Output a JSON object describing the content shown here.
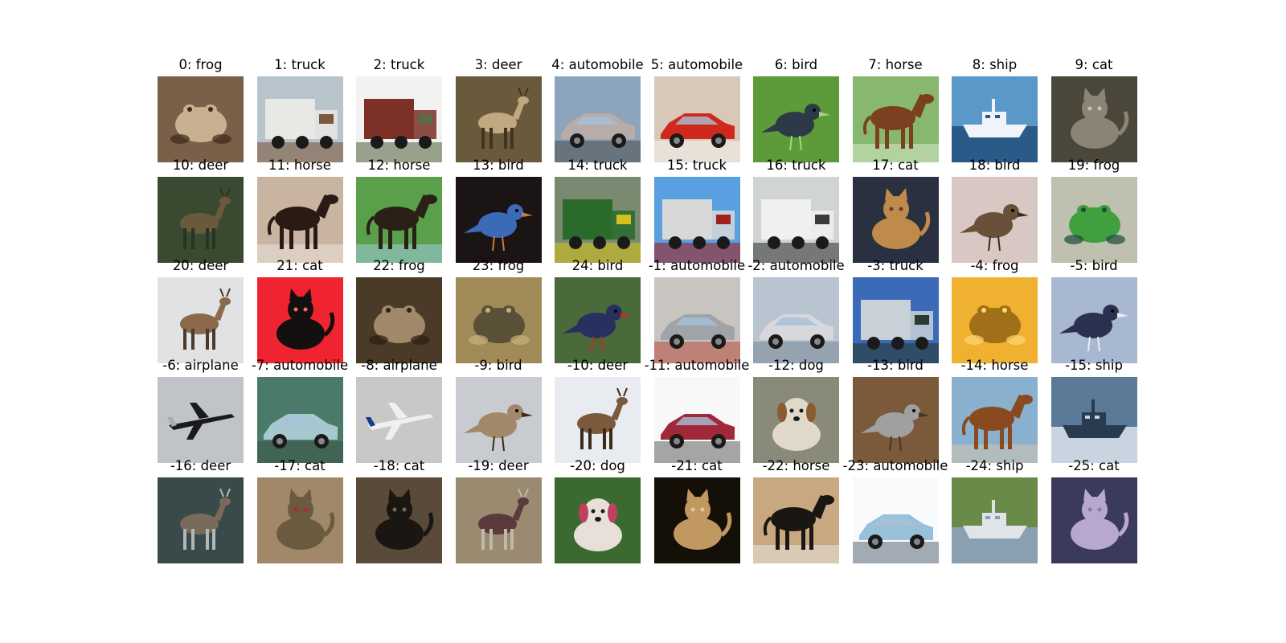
{
  "figure": {
    "cells": [
      {
        "title": "0: frog",
        "subject": "frog",
        "colors": {
          "bg": "#7a6048",
          "fg": "#c8b090",
          "accent": "#3c2a1a"
        }
      },
      {
        "title": "1: truck",
        "subject": "truck",
        "colors": {
          "bg": "#b8c4cc",
          "fg": "#e8e8e4",
          "accent": "#7a5a3a"
        }
      },
      {
        "title": "2: truck",
        "subject": "truck",
        "colors": {
          "bg": "#f2f2f0",
          "fg": "#7c3026",
          "accent": "#5a6a4a"
        }
      },
      {
        "title": "3: deer",
        "subject": "deer",
        "colors": {
          "bg": "#6a5a3c",
          "fg": "#c0a880",
          "accent": "#40341e"
        }
      },
      {
        "title": "4: automobile",
        "subject": "automobile",
        "colors": {
          "bg": "#8ca4bc",
          "fg": "#b8aca8",
          "accent": "#3c3a30"
        }
      },
      {
        "title": "5: automobile",
        "subject": "automobile",
        "colors": {
          "bg": "#d8c8b8",
          "fg": "#d0281c",
          "accent": "#ffffff"
        }
      },
      {
        "title": "6: bird",
        "subject": "bird",
        "colors": {
          "bg": "#5c9a3a",
          "fg": "#2c3a48",
          "accent": "#b0d080"
        }
      },
      {
        "title": "7: horse",
        "subject": "horse",
        "colors": {
          "bg": "#88b870",
          "fg": "#7a4020",
          "accent": "#e0ecd0"
        }
      },
      {
        "title": "8: ship",
        "subject": "ship",
        "colors": {
          "bg": "#5a98c8",
          "fg": "#f0f4f8",
          "accent": "#2a5a88"
        }
      },
      {
        "title": "9: cat",
        "subject": "cat",
        "colors": {
          "bg": "#4a463a",
          "fg": "#8a8474",
          "accent": "#c8c4b4"
        }
      },
      {
        "title": "10: deer",
        "subject": "deer",
        "colors": {
          "bg": "#3a4a30",
          "fg": "#6a5a3c",
          "accent": "#2a3220"
        }
      },
      {
        "title": "11: horse",
        "subject": "horse",
        "colors": {
          "bg": "#c8b4a0",
          "fg": "#2a1a14",
          "accent": "#f0e8e0"
        }
      },
      {
        "title": "12: horse",
        "subject": "horse",
        "colors": {
          "bg": "#5aa04a",
          "fg": "#2a2018",
          "accent": "#a8d0f0"
        }
      },
      {
        "title": "13: bird",
        "subject": "bird",
        "colors": {
          "bg": "#1a1414",
          "fg": "#3a6ab8",
          "accent": "#c87a3a"
        }
      },
      {
        "title": "14: truck",
        "subject": "truck",
        "colors": {
          "bg": "#7a8a70",
          "fg": "#2a6a2a",
          "accent": "#d0c020"
        }
      },
      {
        "title": "15: truck",
        "subject": "truck",
        "colors": {
          "bg": "#5aa0e0",
          "fg": "#d8d8d8",
          "accent": "#a02020"
        }
      },
      {
        "title": "16: truck",
        "subject": "truck",
        "colors": {
          "bg": "#d0d4d4",
          "fg": "#f0f0f0",
          "accent": "#3a3a3a"
        }
      },
      {
        "title": "17: cat",
        "subject": "cat",
        "colors": {
          "bg": "#2a3040",
          "fg": "#c08a4a",
          "accent": "#5a4030"
        }
      },
      {
        "title": "18: bird",
        "subject": "bird",
        "colors": {
          "bg": "#d8c8c4",
          "fg": "#6a5038",
          "accent": "#3a2a1a"
        }
      },
      {
        "title": "19: frog",
        "subject": "frog",
        "colors": {
          "bg": "#c0c0b0",
          "fg": "#40a040",
          "accent": "#1a4a3a"
        }
      },
      {
        "title": "20: deer",
        "subject": "deer",
        "colors": {
          "bg": "#e0e2e4",
          "fg": "#8a6a4a",
          "accent": "#4a3a2a"
        }
      },
      {
        "title": "21: cat",
        "subject": "cat",
        "colors": {
          "bg": "#f02430",
          "fg": "#141010",
          "accent": "#ff6a70"
        }
      },
      {
        "title": "22: frog",
        "subject": "frog",
        "colors": {
          "bg": "#4a3a28",
          "fg": "#a08868",
          "accent": "#2a2014"
        }
      },
      {
        "title": "23: frog",
        "subject": "frog",
        "colors": {
          "bg": "#a08a58",
          "fg": "#5a5038",
          "accent": "#c8b078"
        }
      },
      {
        "title": "24: bird",
        "subject": "bird",
        "colors": {
          "bg": "#4a6a3a",
          "fg": "#283060",
          "accent": "#c03020"
        }
      },
      {
        "title": "-1: automobile",
        "subject": "automobile",
        "colors": {
          "bg": "#c8c4c0",
          "fg": "#a0a4a8",
          "accent": "#b03020"
        }
      },
      {
        "title": "-2: automobile",
        "subject": "automobile",
        "colors": {
          "bg": "#b8c4d0",
          "fg": "#d8d8dc",
          "accent": "#6a7a8a"
        }
      },
      {
        "title": "-3: truck",
        "subject": "truck",
        "colors": {
          "bg": "#3a6ab8",
          "fg": "#c8d0d8",
          "accent": "#2a3a30"
        }
      },
      {
        "title": "-4: frog",
        "subject": "frog",
        "colors": {
          "bg": "#f0b030",
          "fg": "#a07018",
          "accent": "#ffd870"
        }
      },
      {
        "title": "-5: bird",
        "subject": "bird",
        "colors": {
          "bg": "#a8b8d0",
          "fg": "#2a3050",
          "accent": "#e8ecf0"
        }
      },
      {
        "title": "-6: airplane",
        "subject": "airplane",
        "colors": {
          "bg": "#c0c4c8",
          "fg": "#1a1a1a",
          "accent": "#a8acb0"
        }
      },
      {
        "title": "-7: automobile",
        "subject": "automobile",
        "colors": {
          "bg": "#4a7a6a",
          "fg": "#a8c8d0",
          "accent": "#3a4a3a"
        }
      },
      {
        "title": "-8: airplane",
        "subject": "airplane",
        "colors": {
          "bg": "#c8c8c8",
          "fg": "#f0f0f0",
          "accent": "#1a3a8a"
        }
      },
      {
        "title": "-9: bird",
        "subject": "bird",
        "colors": {
          "bg": "#c8ccd0",
          "fg": "#a08868",
          "accent": "#3a2a1a"
        }
      },
      {
        "title": "-10: deer",
        "subject": "deer",
        "colors": {
          "bg": "#e8ecf0",
          "fg": "#7a5a3a",
          "accent": "#3a2a1a"
        }
      },
      {
        "title": "-11: automobile",
        "subject": "automobile",
        "colors": {
          "bg": "#f8f8f8",
          "fg": "#a02838",
          "accent": "#404040"
        }
      },
      {
        "title": "-12: dog",
        "subject": "dog",
        "colors": {
          "bg": "#8a8a7a",
          "fg": "#e0d8c8",
          "accent": "#8a5a30"
        }
      },
      {
        "title": "-13: bird",
        "subject": "bird",
        "colors": {
          "bg": "#7a5a3a",
          "fg": "#a0a0a0",
          "accent": "#4a3420"
        }
      },
      {
        "title": "-14: horse",
        "subject": "horse",
        "colors": {
          "bg": "#8ab0d0",
          "fg": "#8a4a20",
          "accent": "#d8c8a8"
        }
      },
      {
        "title": "-15: ship",
        "subject": "ship",
        "colors": {
          "bg": "#5a7a98",
          "fg": "#2a3a50",
          "accent": "#c8d4e0"
        }
      },
      {
        "title": "-16: deer",
        "subject": "deer",
        "colors": {
          "bg": "#3a4a4a",
          "fg": "#7a6a5a",
          "accent": "#b0b8b8"
        }
      },
      {
        "title": "-17: cat",
        "subject": "cat",
        "colors": {
          "bg": "#a08868",
          "fg": "#6a5a40",
          "accent": "#c02030"
        }
      },
      {
        "title": "-18: cat",
        "subject": "cat",
        "colors": {
          "bg": "#5a4a3a",
          "fg": "#1a1612",
          "accent": "#7a6a54"
        }
      },
      {
        "title": "-19: deer",
        "subject": "deer",
        "colors": {
          "bg": "#9a8a70",
          "fg": "#5a3a3a",
          "accent": "#c0b8a8"
        }
      },
      {
        "title": "-20: dog",
        "subject": "dog",
        "colors": {
          "bg": "#3a6a30",
          "fg": "#e8e0d8",
          "accent": "#c04060"
        }
      },
      {
        "title": "-21: cat",
        "subject": "cat",
        "colors": {
          "bg": "#141008",
          "fg": "#c09860",
          "accent": "#e0c8a0"
        }
      },
      {
        "title": "-22: horse",
        "subject": "horse",
        "colors": {
          "bg": "#c8a880",
          "fg": "#1a1612",
          "accent": "#e8ece8"
        }
      },
      {
        "title": "-23: automobile",
        "subject": "automobile",
        "colors": {
          "bg": "#f8fafc",
          "fg": "#98c0d8",
          "accent": "#3a4a5a"
        }
      },
      {
        "title": "-24: ship",
        "subject": "ship",
        "colors": {
          "bg": "#6a8a4a",
          "fg": "#e0e4e8",
          "accent": "#8aa0b0"
        }
      },
      {
        "title": "-25: cat",
        "subject": "cat",
        "colors": {
          "bg": "#3a3a5a",
          "fg": "#b8a8d0",
          "accent": "#8a7ab0"
        }
      }
    ]
  }
}
